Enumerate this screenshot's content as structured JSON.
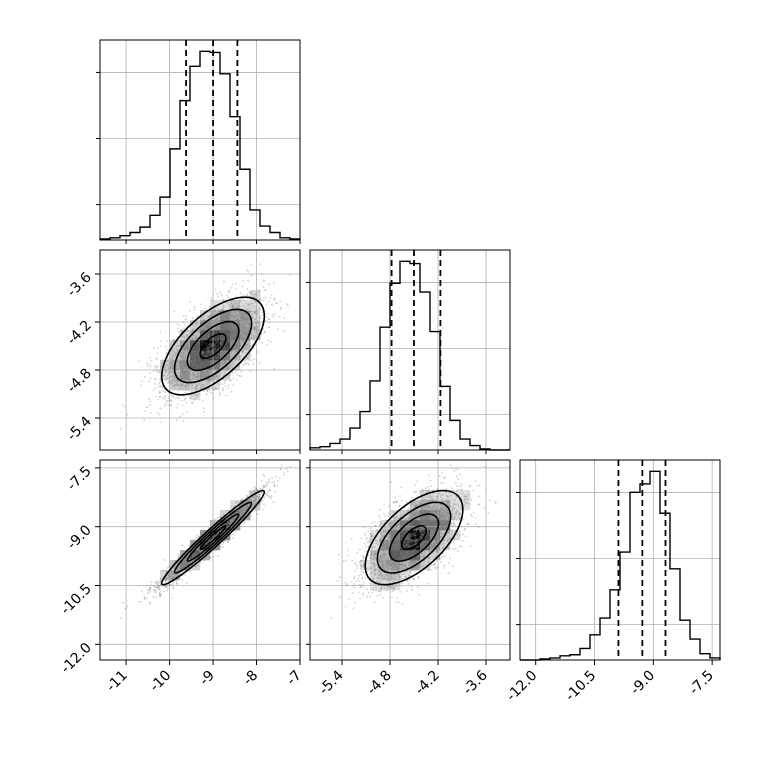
{
  "chart_data": {
    "type": "corner",
    "grid": true,
    "quantile_lines": "dashed",
    "parameters": [
      {
        "index": 0,
        "median": -9.0,
        "q16": -9.62,
        "q84": -8.44,
        "range": [
          -11.6,
          -7.0
        ],
        "ticks": [
          "-11",
          "-10",
          "-9",
          "-8",
          "-7"
        ],
        "tick_values": [
          -11,
          -10,
          -9,
          -8,
          -7
        ]
      },
      {
        "index": 1,
        "median": -4.5,
        "q16": -4.78,
        "q84": -4.17,
        "range": [
          -5.8,
          -3.3
        ],
        "ticks": [
          "-5.4",
          "-4.8",
          "-4.2",
          "-3.6"
        ],
        "tick_values": [
          -5.4,
          -4.8,
          -4.2,
          -3.6
        ]
      },
      {
        "index": 2,
        "median": -9.28,
        "q16": -9.89,
        "q84": -8.69,
        "range": [
          -12.4,
          -7.3
        ],
        "ticks": [
          "-12.0",
          "-10.5",
          "-9.0",
          "-7.5"
        ],
        "tick_values": [
          -12.0,
          -10.5,
          -9.0,
          -7.5
        ]
      }
    ],
    "histograms": [
      {
        "param": 0,
        "bin_edges": [
          -11.6,
          -11.37,
          -11.14,
          -10.91,
          -10.68,
          -10.45,
          -10.22,
          -9.99,
          -9.76,
          -9.53,
          -9.3,
          -9.07,
          -8.84,
          -8.61,
          -8.38,
          -8.15,
          -7.92,
          -7.69,
          -7.46,
          -7.23,
          -7.0
        ],
        "counts": [
          1,
          2,
          4,
          7,
          12,
          23,
          40,
          85,
          130,
          162,
          176,
          175,
          155,
          115,
          66,
          28,
          13,
          7,
          2,
          1
        ]
      },
      {
        "param": 1,
        "bin_edges": [
          -5.8,
          -5.675,
          -5.55,
          -5.425,
          -5.3,
          -5.175,
          -5.05,
          -4.925,
          -4.8,
          -4.675,
          -4.55,
          -4.425,
          -4.3,
          -4.175,
          -4.05,
          -3.925,
          -3.8,
          -3.675,
          -3.55,
          -3.425,
          -3.3
        ],
        "counts": [
          2,
          3,
          6,
          10,
          20,
          35,
          63,
          112,
          152,
          172,
          170,
          144,
          108,
          58,
          27,
          10,
          4,
          1,
          0,
          0
        ]
      },
      {
        "param": 2,
        "bin_edges": [
          -12.4,
          -12.145,
          -11.89,
          -11.635,
          -11.38,
          -11.125,
          -10.87,
          -10.615,
          -10.36,
          -10.105,
          -9.85,
          -9.595,
          -9.34,
          -9.085,
          -8.83,
          -8.575,
          -8.32,
          -8.065,
          -7.81,
          -7.555,
          -7.3
        ],
        "counts": [
          0,
          0,
          1,
          2,
          4,
          5,
          11,
          24,
          40,
          67,
          103,
          160,
          168,
          180,
          140,
          87,
          38,
          20,
          6,
          2
        ]
      }
    ],
    "scatter_panels": [
      {
        "x_param": 0,
        "y_param": 1,
        "correlation": 0.62,
        "density_peak": [
          -8.95,
          -4.45
        ]
      },
      {
        "x_param": 0,
        "y_param": 2,
        "correlation": 0.97,
        "density_peak": [
          -9.05,
          -9.3
        ]
      },
      {
        "x_param": 1,
        "y_param": 2,
        "correlation": 0.6,
        "density_peak": [
          -4.5,
          -9.28
        ]
      }
    ],
    "colors": {
      "hist": "#000000",
      "scatter": "#7f7f7f",
      "grid": "#b0b0b0",
      "contour": "#000000"
    }
  }
}
